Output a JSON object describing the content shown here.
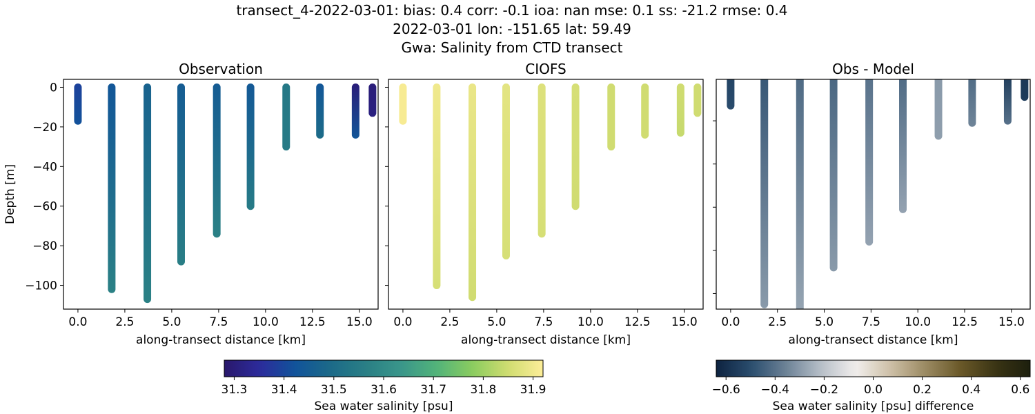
{
  "title_lines": [
    "transect_4-2022-03-01: bias: 0.4  corr: -0.1  ioa: nan  mse: 0.1  ss: -21.2  rmse: 0.4",
    "2022-03-01 lon: -151.65 lat: 59.49",
    "Gwa: Salinity from CTD transect"
  ],
  "chart_data": [
    {
      "type": "scatter",
      "title": "Observation",
      "xlabel": "along-transect distance [km]",
      "ylabel": "Depth [m]",
      "xlim": [
        -0.77,
        16.0
      ],
      "ylim": [
        -112,
        4
      ],
      "xticks": [
        "0.0",
        "2.5",
        "5.0",
        "7.5",
        "10.0",
        "12.5",
        "15.0"
      ],
      "xtick_values": [
        0,
        2.5,
        5,
        7.5,
        10,
        12.5,
        15
      ],
      "yticks": [
        "0",
        "−20",
        "−40",
        "−60",
        "−80",
        "−100"
      ],
      "ytick_values": [
        0,
        -20,
        -40,
        -60,
        -80,
        -100
      ],
      "colormap": "haline",
      "profiles": [
        {
          "x": 0.0,
          "depth_max": 17,
          "value_top": 31.39,
          "value_bottom": 31.42
        },
        {
          "x": 1.8,
          "depth_max": 102,
          "value_top": 31.43,
          "value_bottom": 31.57
        },
        {
          "x": 3.7,
          "depth_max": 107,
          "value_top": 31.47,
          "value_bottom": 31.57
        },
        {
          "x": 5.5,
          "depth_max": 88,
          "value_top": 31.45,
          "value_bottom": 31.56
        },
        {
          "x": 7.4,
          "depth_max": 74,
          "value_top": 31.45,
          "value_bottom": 31.57
        },
        {
          "x": 9.2,
          "depth_max": 60,
          "value_top": 31.44,
          "value_bottom": 31.55
        },
        {
          "x": 11.1,
          "depth_max": 30,
          "value_top": 31.54,
          "value_bottom": 31.55
        },
        {
          "x": 12.9,
          "depth_max": 24,
          "value_top": 31.43,
          "value_bottom": 31.5
        },
        {
          "x": 14.8,
          "depth_max": 24,
          "value_top": 31.3,
          "value_bottom": 31.43
        },
        {
          "x": 15.7,
          "depth_max": 13,
          "value_top": 31.3,
          "value_bottom": 31.31
        }
      ]
    },
    {
      "type": "scatter",
      "title": "CIOFS",
      "xlabel": "along-transect distance [km]",
      "xlim": [
        -0.77,
        16.0
      ],
      "ylim": [
        -112,
        4
      ],
      "xticks": [
        "0.0",
        "2.5",
        "5.0",
        "7.5",
        "10.0",
        "12.5",
        "15.0"
      ],
      "xtick_values": [
        0,
        2.5,
        5,
        7.5,
        10,
        12.5,
        15
      ],
      "ytick_values": [
        0,
        -20,
        -40,
        -60,
        -80,
        -100
      ],
      "colormap": "haline",
      "profiles": [
        {
          "x": 0.0,
          "depth_max": 17,
          "value_top": 31.91,
          "value_bottom": 31.91
        },
        {
          "x": 1.8,
          "depth_max": 100,
          "value_top": 31.9,
          "value_bottom": 31.86
        },
        {
          "x": 3.7,
          "depth_max": 106,
          "value_top": 31.89,
          "value_bottom": 31.85
        },
        {
          "x": 5.5,
          "depth_max": 85,
          "value_top": 31.88,
          "value_bottom": 31.86
        },
        {
          "x": 7.4,
          "depth_max": 74,
          "value_top": 31.87,
          "value_bottom": 31.86
        },
        {
          "x": 9.2,
          "depth_max": 60,
          "value_top": 31.86,
          "value_bottom": 31.85
        },
        {
          "x": 11.1,
          "depth_max": 30,
          "value_top": 31.85,
          "value_bottom": 31.85
        },
        {
          "x": 12.9,
          "depth_max": 24,
          "value_top": 31.85,
          "value_bottom": 31.85
        },
        {
          "x": 14.8,
          "depth_max": 23,
          "value_top": 31.85,
          "value_bottom": 31.84
        },
        {
          "x": 15.7,
          "depth_max": 13,
          "value_top": 31.85,
          "value_bottom": 31.85
        }
      ]
    },
    {
      "type": "scatter",
      "title": "Obs - Model",
      "xlabel": "along-transect distance [km]",
      "xlim": [
        -0.77,
        16.0
      ],
      "ylim": [
        -107.2,
        -0.8
      ],
      "xticks": [
        "0.0",
        "2.5",
        "5.0",
        "7.5",
        "10.0",
        "12.5",
        "15.0"
      ],
      "xtick_values": [
        0,
        2.5,
        5,
        7.5,
        10,
        12.5,
        15
      ],
      "ytick_values": [
        -20,
        -40,
        -60,
        -80,
        -100
      ],
      "colormap": "balance",
      "profiles": [
        {
          "x": 0.0,
          "depth_max": 13,
          "value_top": -0.53,
          "value_bottom": -0.5
        },
        {
          "x": 1.8,
          "depth_max": 105,
          "value_top": -0.47,
          "value_bottom": -0.3
        },
        {
          "x": 3.7,
          "depth_max": 112,
          "value_top": -0.42,
          "value_bottom": -0.27
        },
        {
          "x": 5.5,
          "depth_max": 88,
          "value_top": -0.43,
          "value_bottom": -0.3
        },
        {
          "x": 7.4,
          "depth_max": 76,
          "value_top": -0.4,
          "value_bottom": -0.28
        },
        {
          "x": 9.2,
          "depth_max": 61,
          "value_top": -0.42,
          "value_bottom": -0.28
        },
        {
          "x": 11.1,
          "depth_max": 27,
          "value_top": -0.3,
          "value_bottom": -0.29
        },
        {
          "x": 12.9,
          "depth_max": 21,
          "value_top": -0.42,
          "value_bottom": -0.35
        },
        {
          "x": 14.8,
          "depth_max": 20,
          "value_top": -0.56,
          "value_bottom": -0.4
        },
        {
          "x": 15.7,
          "depth_max": 9,
          "value_top": -0.57,
          "value_bottom": -0.56
        }
      ]
    }
  ],
  "colorbars": [
    {
      "label": "Sea water salinity [psu]",
      "range": [
        31.28,
        31.92
      ],
      "ticks": [
        "31.3",
        "31.4",
        "31.5",
        "31.6",
        "31.7",
        "31.8",
        "31.9"
      ],
      "tick_values": [
        31.3,
        31.4,
        31.5,
        31.6,
        31.7,
        31.8,
        31.9
      ],
      "colormap": "haline"
    },
    {
      "label": "Sea water salinity [psu] difference",
      "range": [
        -0.64,
        0.64
      ],
      "ticks": [
        "−0.6",
        "−0.4",
        "−0.2",
        "0.0",
        "0.2",
        "0.4",
        "0.6"
      ],
      "tick_values": [
        -0.6,
        -0.4,
        -0.2,
        0,
        0.2,
        0.4,
        0.6
      ],
      "colormap": "balance"
    }
  ],
  "colormaps": {
    "haline": [
      "#29186b",
      "#2c2b9c",
      "#11539a",
      "#1c6a88",
      "#2a7f85",
      "#3a968a",
      "#52b37a",
      "#8acc5f",
      "#cfdc70",
      "#fdee99"
    ],
    "balance": [
      "#0d2340",
      "#2a4d6e",
      "#6c8296",
      "#b7bfc8",
      "#f1eeec",
      "#cdbfa6",
      "#9b8a62",
      "#6a5828",
      "#3a3414",
      "#1c1f0d"
    ]
  }
}
